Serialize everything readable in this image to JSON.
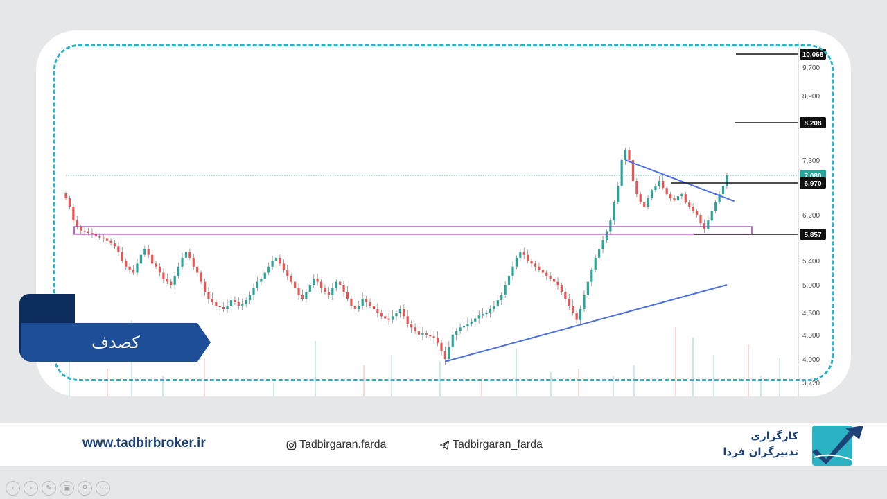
{
  "ticker": "کصدف",
  "footer": {
    "website": "www.tadbirbroker.ir",
    "instagram": "Tadbirgaran.farda",
    "telegram": "Tadbirgaran_farda",
    "brand_line1": "کارگزاری",
    "brand_line2": "تدبیرگران فردا"
  },
  "colors": {
    "accent_dash": "#2bb3c4",
    "ticker_bg": "#1d4e97",
    "candle_up": "#26a69a",
    "candle_down": "#ef5350",
    "trendline": "#4a6fe3",
    "zone": "#b040c8"
  },
  "slide_controls": [
    "prev-icon",
    "next-icon",
    "pen-icon",
    "slides-icon",
    "zoom-icon",
    "more-icon"
  ],
  "chart_data": {
    "type": "candlestick",
    "y_axis": {
      "ticks": [
        "9,700",
        "8,900",
        "7,300",
        "6,200",
        "5,400",
        "5,000",
        "4,600",
        "4,300",
        "4,000",
        "3,720"
      ],
      "tick_values": [
        9700,
        8900,
        7300,
        6200,
        5400,
        5000,
        4600,
        4300,
        4000,
        3720
      ]
    },
    "price_labels": [
      {
        "text": "10,068",
        "value": 10068,
        "style": "dark"
      },
      {
        "text": "8,208",
        "value": 8208,
        "style": "dark"
      },
      {
        "text": "7,080",
        "value": 7080,
        "style": "green"
      },
      {
        "text": "6,970",
        "value": 6970,
        "style": "dark"
      },
      {
        "text": "5,857",
        "value": 5857,
        "style": "dark"
      }
    ],
    "horizontal_levels": [
      10068,
      8208,
      6970,
      5857
    ],
    "current_price": 7080,
    "support_zone": [
      5860,
      5990
    ],
    "closes": [
      6600,
      6400,
      6100,
      5980,
      5920,
      5900,
      5880,
      5850,
      5820,
      5800,
      5780,
      5740,
      5700,
      5650,
      5550,
      5400,
      5300,
      5250,
      5200,
      5350,
      5500,
      5600,
      5500,
      5350,
      5300,
      5200,
      5100,
      5050,
      5000,
      5150,
      5300,
      5450,
      5550,
      5450,
      5300,
      5200,
      5050,
      4900,
      4800,
      4750,
      4700,
      4680,
      4650,
      4700,
      4780,
      4750,
      4700,
      4720,
      4780,
      4850,
      4950,
      5050,
      5100,
      5200,
      5300,
      5400,
      5450,
      5350,
      5250,
      5150,
      5050,
      4950,
      4850,
      4800,
      4900,
      5000,
      5100,
      5050,
      4950,
      4900,
      4850,
      4950,
      5050,
      5000,
      4900,
      4800,
      4700,
      4650,
      4700,
      4800,
      4750,
      4700,
      4650,
      4600,
      4550,
      4520,
      4500,
      4550,
      4600,
      4650,
      4550,
      4450,
      4400,
      4350,
      4300,
      4320,
      4300,
      4280,
      4260,
      4200,
      4100,
      4000,
      4150,
      4300,
      4350,
      4400,
      4420,
      4450,
      4480,
      4520,
      4560,
      4580,
      4600,
      4650,
      4700,
      4780,
      4850,
      5000,
      5150,
      5300,
      5450,
      5550,
      5500,
      5400,
      5350,
      5300,
      5250,
      5200,
      5150,
      5100,
      5050,
      5000,
      4900,
      4800,
      4700,
      4600,
      4500,
      4650,
      4850,
      5050,
      5250,
      5450,
      5600,
      5750,
      5900,
      6100,
      6500,
      6900,
      7300,
      7550,
      7300,
      7000,
      6700,
      6500,
      6400,
      6600,
      6800,
      6900,
      7000,
      6850,
      6700,
      6600,
      6550,
      6650,
      6700,
      6500,
      6400,
      6300,
      6200,
      6050,
      5950,
      6100,
      6300,
      6500,
      6700,
      6900,
      7080
    ],
    "volume_days": [
      5,
      60,
      95,
      140,
      200,
      300,
      360,
      430,
      470,
      540,
      600,
      650,
      700,
      740,
      790,
      820,
      880,
      905,
      935,
      985,
      1003,
      1030
    ]
  }
}
